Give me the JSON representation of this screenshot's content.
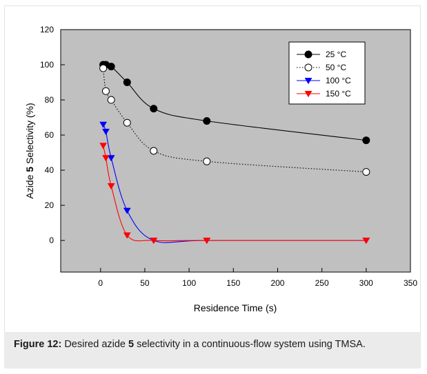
{
  "chart_data": {
    "type": "line",
    "xlabel": "Residence Time (s)",
    "ylabel_parts": [
      "Azide ",
      "5",
      " Selectivity (%)"
    ],
    "xlim": [
      -45,
      350
    ],
    "ylim": [
      -18,
      120
    ],
    "xticks": [
      0,
      50,
      100,
      150,
      200,
      250,
      300,
      350
    ],
    "yticks": [
      0,
      20,
      40,
      60,
      80,
      100,
      120
    ],
    "plot_background": "#c0c0c0",
    "legend_position": "top-right",
    "series": [
      {
        "name": "25 °C",
        "marker": "circle-filled",
        "color": "#000000",
        "line": "solid",
        "x": [
          3,
          6,
          12,
          30,
          60,
          120,
          300
        ],
        "y": [
          100,
          100,
          99,
          90,
          75,
          68,
          57
        ]
      },
      {
        "name": "50 °C",
        "marker": "circle-open",
        "color": "#000000",
        "line": "dotted",
        "x": [
          3,
          6,
          12,
          30,
          60,
          120,
          300
        ],
        "y": [
          98,
          85,
          80,
          67,
          51,
          45,
          39
        ]
      },
      {
        "name": "100 °C",
        "marker": "triangle-down",
        "color": "#0000ff",
        "line": "solid",
        "x": [
          3,
          6,
          12,
          30,
          60,
          120,
          300
        ],
        "y": [
          66,
          62,
          47,
          17,
          0,
          0,
          0
        ]
      },
      {
        "name": "150 °C",
        "marker": "triangle-down",
        "color": "#ff0000",
        "line": "solid",
        "x": [
          3,
          6,
          12,
          30,
          60,
          120,
          300
        ],
        "y": [
          54,
          47,
          31,
          3,
          0,
          0,
          0
        ]
      }
    ]
  },
  "caption": {
    "label": "Figure 12:",
    "text_before": " Desired azide ",
    "bold_number": "5",
    "text_after": " selectivity in a continuous-flow system using TMSA."
  }
}
